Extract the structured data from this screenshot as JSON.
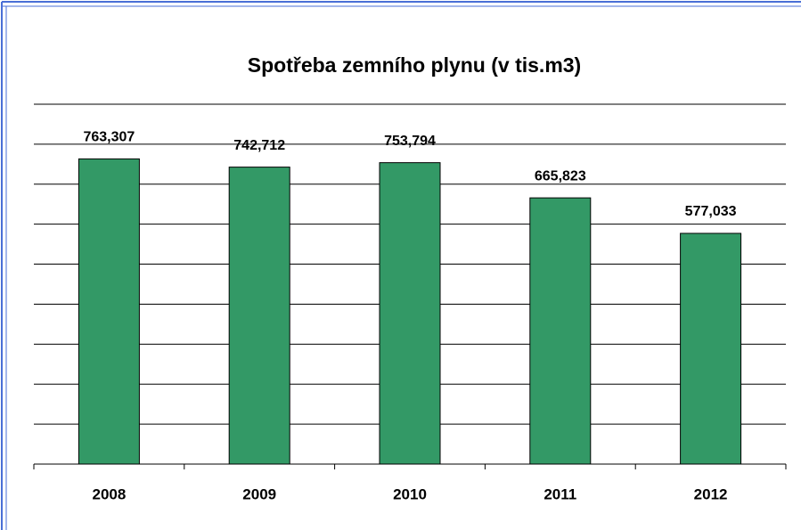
{
  "chart_data": {
    "type": "bar",
    "title": "Spotřeba zemního plynu (v tis.m3)",
    "categories": [
      "2008",
      "2009",
      "2010",
      "2011",
      "2012"
    ],
    "values": [
      763.307,
      742.712,
      753.794,
      665.823,
      577.033
    ],
    "value_labels": [
      "763,307",
      "742,712",
      "753,794",
      "665,823",
      "577,033"
    ],
    "color": "#339966",
    "ylim": [
      0,
      900
    ],
    "yticks": [
      0,
      100,
      200,
      300,
      400,
      500,
      600,
      700,
      800,
      900
    ],
    "grid": true
  }
}
